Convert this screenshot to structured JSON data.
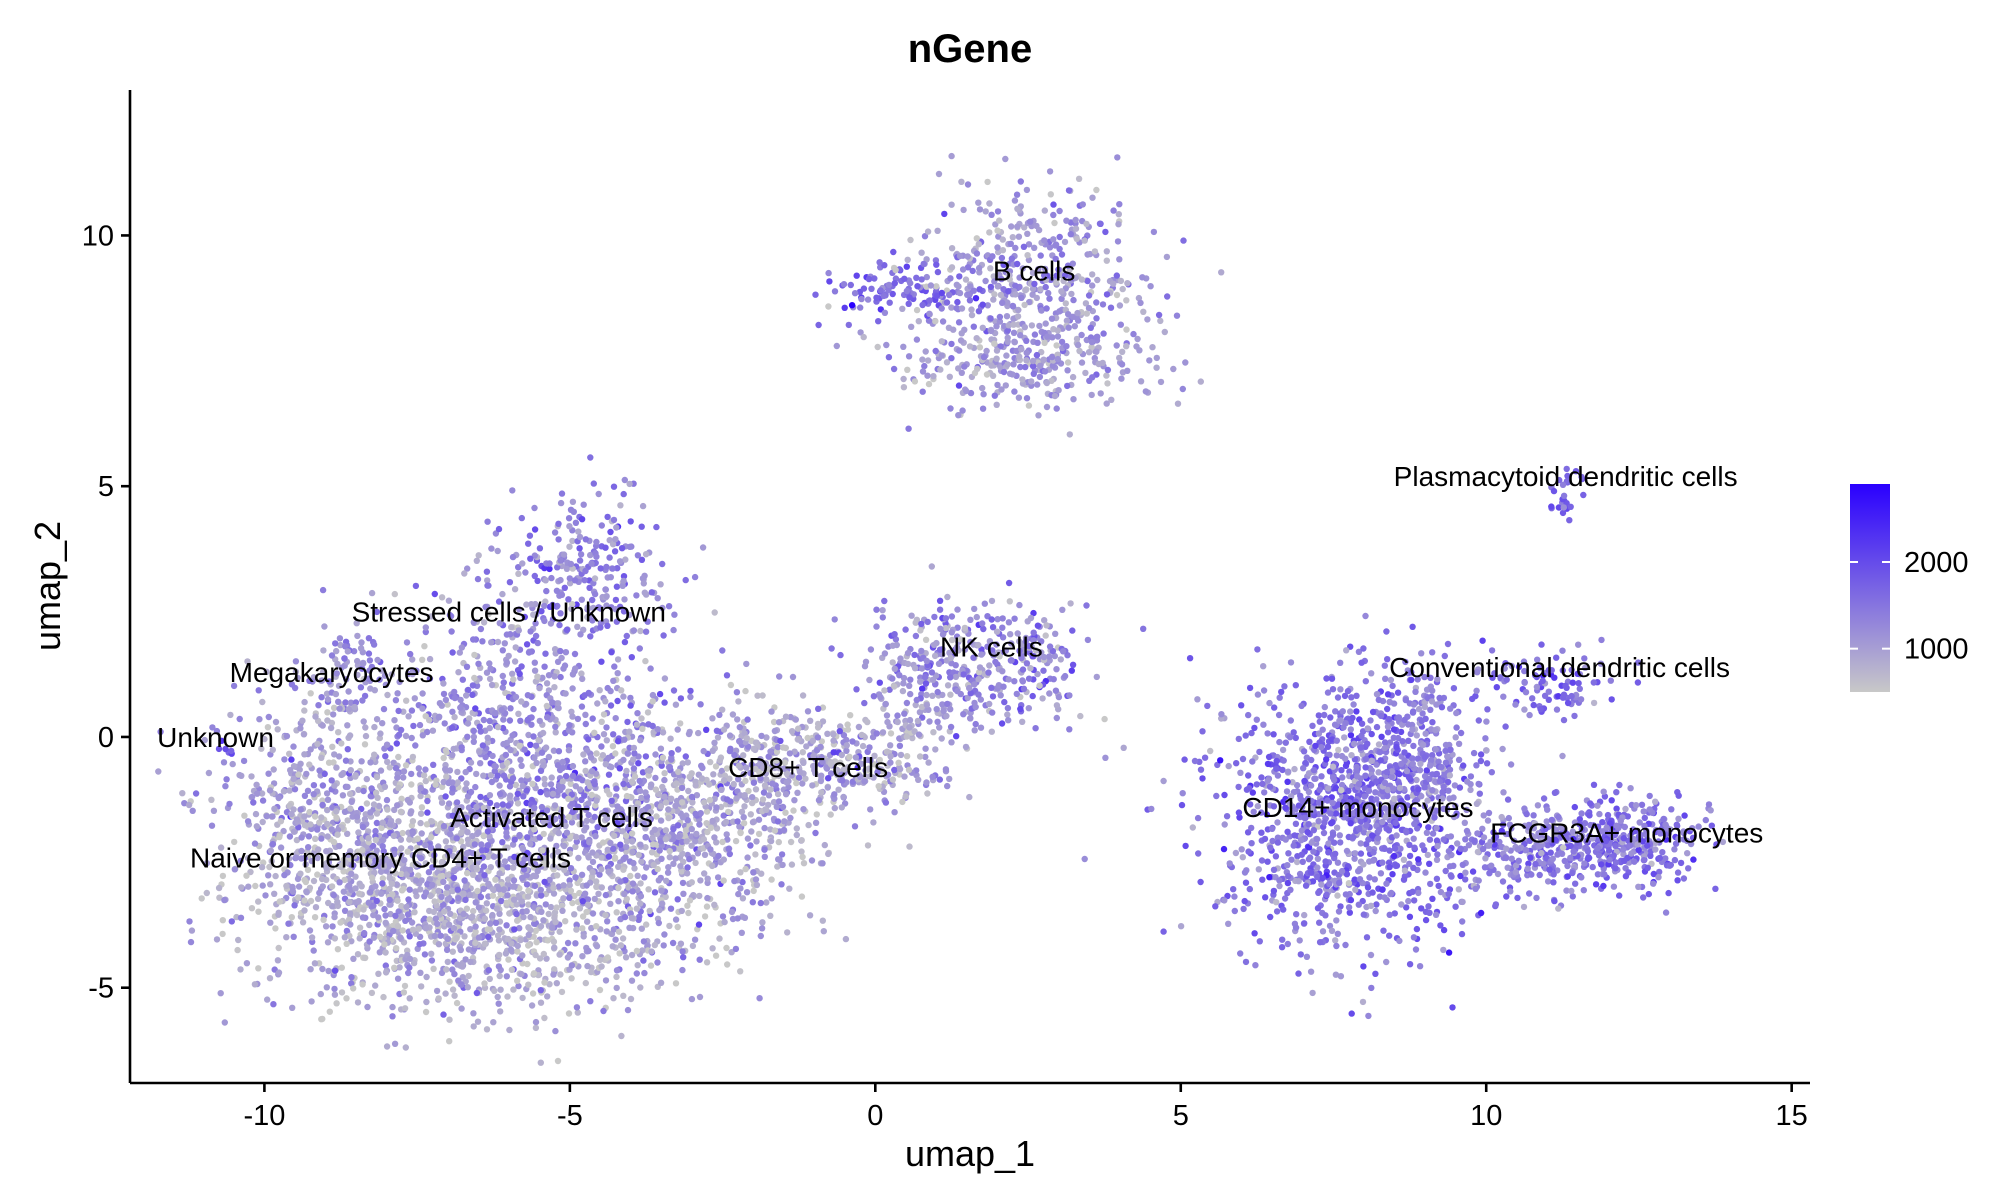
{
  "chart_data": {
    "type": "scatter",
    "title": "nGene",
    "xlabel": "umap_1",
    "ylabel": "umap_2",
    "xlim": [
      -12.2,
      15.3
    ],
    "ylim": [
      -6.9,
      12.9
    ],
    "x_ticks": [
      {
        "value": -10,
        "label": "-10"
      },
      {
        "value": -5,
        "label": "-5"
      },
      {
        "value": 0,
        "label": "0"
      },
      {
        "value": 5,
        "label": "5"
      },
      {
        "value": 10,
        "label": "10"
      },
      {
        "value": 15,
        "label": "15"
      }
    ],
    "y_ticks": [
      {
        "value": -5,
        "label": "-5"
      },
      {
        "value": 0,
        "label": "0"
      },
      {
        "value": 5,
        "label": "5"
      },
      {
        "value": 10,
        "label": "10"
      }
    ],
    "grid": false,
    "color_scale": {
      "name": "nGene",
      "low_color": "#c8c8c8",
      "high_color": "#2a00ff",
      "range": [
        500,
        2900
      ],
      "ticks": [
        {
          "value": 1000,
          "label": "1000"
        },
        {
          "value": 2000,
          "label": "2000"
        }
      ],
      "legend_position": "right"
    },
    "clusters": [
      {
        "name": "B cells",
        "label_x": 2.6,
        "label_y": 9.1
      },
      {
        "name": "Plasmacytoid dendritic cells",
        "label_x": 11.3,
        "label_y": 5.0
      },
      {
        "name": "Stressed cells / Unknown",
        "label_x": -6.0,
        "label_y": 2.3
      },
      {
        "name": "NK cells",
        "label_x": 1.9,
        "label_y": 1.6
      },
      {
        "name": "Conventional dendritic cells",
        "label_x": 11.2,
        "label_y": 1.2
      },
      {
        "name": "Megakaryocytes",
        "label_x": -8.9,
        "label_y": 1.1
      },
      {
        "name": "Unknown",
        "label_x": -10.8,
        "label_y": -0.2
      },
      {
        "name": "CD8+ T cells",
        "label_x": -1.1,
        "label_y": -0.8
      },
      {
        "name": "CD14+ monocytes",
        "label_x": 7.9,
        "label_y": -1.6
      },
      {
        "name": "Activated T cells",
        "label_x": -5.3,
        "label_y": -1.8
      },
      {
        "name": "FCGR3A+ monocytes",
        "label_x": 12.3,
        "label_y": -2.1
      },
      {
        "name": "Naive or memory CD4+ T cells",
        "label_x": -8.1,
        "label_y": -2.6
      }
    ]
  }
}
